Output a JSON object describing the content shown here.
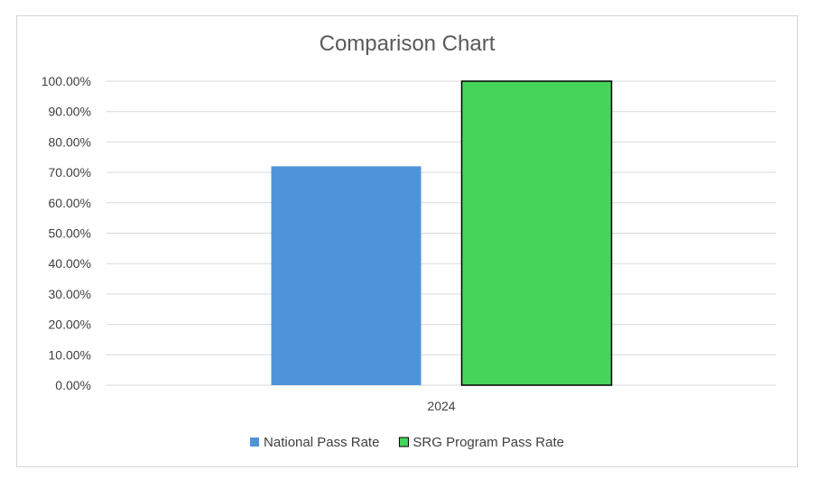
{
  "chart_data": {
    "type": "bar",
    "title": "Comparison Chart",
    "xlabel": "",
    "ylabel": "",
    "categories": [
      "2024"
    ],
    "series": [
      {
        "name": "National Pass Rate",
        "values": [
          0.72
        ],
        "color": "#4f94d9"
      },
      {
        "name": "SRG Program Pass Rate",
        "values": [
          1.0
        ],
        "color": "#45d55a",
        "outline": "#000000"
      }
    ],
    "ylim": [
      0,
      1
    ],
    "yticks": [
      0,
      0.1,
      0.2,
      0.3,
      0.4,
      0.5,
      0.6,
      0.7,
      0.8,
      0.9,
      1.0
    ],
    "ytick_labels": [
      "0.00%",
      "10.00%",
      "20.00%",
      "30.00%",
      "40.00%",
      "50.00%",
      "60.00%",
      "70.00%",
      "80.00%",
      "90.00%",
      "100.00%"
    ],
    "grid": true,
    "legend": "bottom"
  }
}
